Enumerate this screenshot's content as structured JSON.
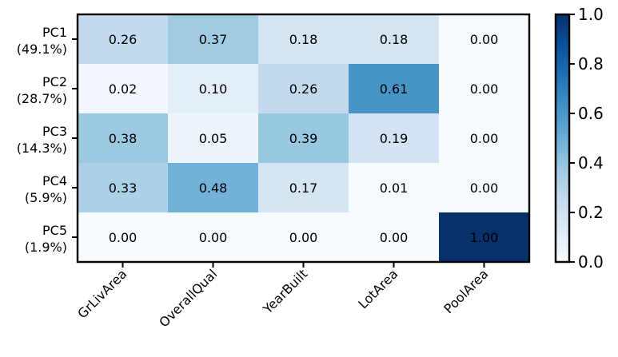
{
  "chart_data": {
    "type": "heatmap",
    "title": "",
    "xlabel": "",
    "ylabel": "",
    "x_categories": [
      "GrLivArea",
      "OverallQual",
      "YearBuilt",
      "LotArea",
      "PoolArea"
    ],
    "y_categories": [
      {
        "name": "PC1",
        "variance": "(49.1%)"
      },
      {
        "name": "PC2",
        "variance": "(28.7%)"
      },
      {
        "name": "PC3",
        "variance": "(14.3%)"
      },
      {
        "name": "PC4",
        "variance": "(5.9%)"
      },
      {
        "name": "PC5",
        "variance": "(1.9%)"
      }
    ],
    "values": [
      [
        0.26,
        0.37,
        0.18,
        0.18,
        0.0
      ],
      [
        0.02,
        0.1,
        0.26,
        0.61,
        0.0
      ],
      [
        0.38,
        0.05,
        0.39,
        0.19,
        0.0
      ],
      [
        0.33,
        0.48,
        0.17,
        0.01,
        0.0
      ],
      [
        0.0,
        0.0,
        0.0,
        0.0,
        1.0
      ]
    ],
    "value_format": "0.00",
    "colormap": "Blues",
    "colormap_stops": [
      "#f7fbff",
      "#deebf7",
      "#c6dbef",
      "#9ecae1",
      "#6baed6",
      "#4292c6",
      "#2171b5",
      "#08519c",
      "#08306b"
    ],
    "colorbar": {
      "range": [
        0.0,
        1.0
      ],
      "ticks": [
        "0.0",
        "0.2",
        "0.4",
        "0.6",
        "0.8",
        "1.0"
      ],
      "tick_values": [
        0.0,
        0.2,
        0.4,
        0.6,
        0.8,
        1.0
      ]
    }
  }
}
